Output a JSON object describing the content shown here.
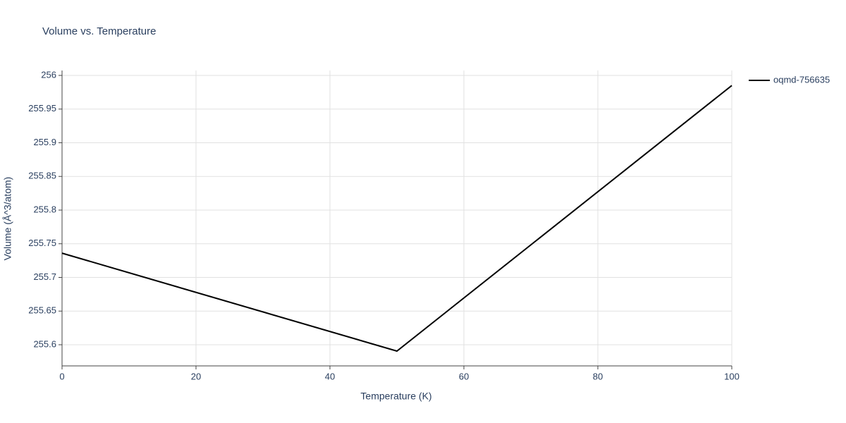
{
  "chart_data": {
    "type": "line",
    "title": "Volume vs. Temperature",
    "x_label": "Temperature (K)",
    "y_label": "Volume (Å^3/atom)",
    "x": [
      0,
      50,
      100
    ],
    "series": [
      {
        "name": "oqmd-756635",
        "color": "#000000",
        "values": [
          255.736,
          255.5906,
          255.985
        ]
      }
    ],
    "xlim": [
      0,
      100
    ],
    "xticks": [
      0,
      20,
      40,
      60,
      80,
      100
    ],
    "ylim": [
      255.5686,
      256.0073
    ],
    "yticks": [
      255.6,
      255.65,
      255.7,
      255.75,
      255.8,
      255.85,
      255.9,
      255.95,
      256
    ],
    "grid": true,
    "legend": "right"
  }
}
